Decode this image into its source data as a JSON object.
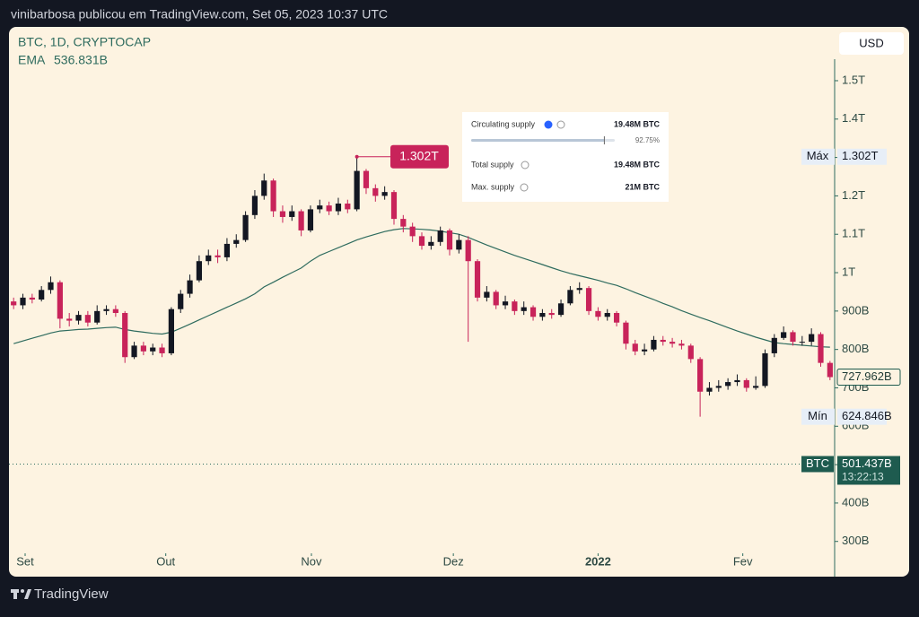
{
  "header": "vinibarbosa publicou em TradingView.com, Set 05, 2023 10:37 UTC",
  "footer": "TradingView",
  "chart_data": {
    "type": "candlestick",
    "title": "BTC, 1D, CRYPTOCAP",
    "currency": "USD",
    "up_color": "#131722",
    "down_color": "#c8235a",
    "open": [
      925,
      915,
      935,
      930,
      955,
      975,
      880,
      875,
      890,
      870,
      900,
      905,
      895,
      780,
      810,
      795,
      805,
      790,
      905,
      945,
      980,
      1030,
      1045,
      1040,
      1075,
      1085,
      1150,
      1200,
      1240,
      1160,
      1145,
      1160,
      1110,
      1165,
      1175,
      1160,
      1180,
      1165,
      1265,
      1220,
      1200,
      1210,
      1140,
      1120,
      1095,
      1070,
      1080,
      1110,
      1060,
      1085,
      1030,
      935,
      950,
      915,
      925,
      900,
      910,
      885,
      895,
      890,
      920,
      955,
      960,
      900,
      885,
      895,
      870,
      815,
      795,
      800,
      825,
      820,
      815,
      810,
      775,
      690,
      700,
      705,
      715,
      720,
      700,
      705,
      790,
      830,
      845,
      820,
      820,
      840,
      765
    ],
    "high": [
      935,
      945,
      945,
      965,
      990,
      980,
      895,
      900,
      900,
      915,
      915,
      915,
      900,
      820,
      820,
      815,
      815,
      910,
      955,
      995,
      1045,
      1060,
      1060,
      1090,
      1100,
      1160,
      1215,
      1258,
      1245,
      1175,
      1175,
      1165,
      1175,
      1190,
      1185,
      1195,
      1190,
      1302,
      1270,
      1230,
      1225,
      1215,
      1150,
      1130,
      1105,
      1095,
      1120,
      1115,
      1100,
      1095,
      1035,
      965,
      955,
      940,
      930,
      925,
      915,
      905,
      905,
      930,
      965,
      975,
      965,
      910,
      905,
      900,
      875,
      825,
      815,
      835,
      835,
      830,
      825,
      815,
      780,
      715,
      720,
      725,
      735,
      725,
      730,
      800,
      840,
      860,
      850,
      835,
      855,
      845,
      770
    ],
    "low": [
      905,
      905,
      920,
      925,
      945,
      855,
      860,
      865,
      860,
      865,
      890,
      885,
      765,
      775,
      785,
      785,
      780,
      785,
      895,
      935,
      975,
      1020,
      1025,
      1030,
      1065,
      1080,
      1140,
      1190,
      1145,
      1130,
      1135,
      1095,
      1105,
      1155,
      1150,
      1150,
      1155,
      1160,
      1205,
      1185,
      1190,
      1125,
      1105,
      1080,
      1060,
      1060,
      1070,
      1045,
      1050,
      820,
      925,
      925,
      905,
      905,
      890,
      890,
      875,
      875,
      880,
      885,
      915,
      945,
      890,
      875,
      875,
      860,
      800,
      785,
      785,
      795,
      810,
      805,
      800,
      765,
      624.846,
      680,
      690,
      695,
      705,
      690,
      695,
      700,
      780,
      825,
      810,
      810,
      810,
      755,
      720
    ],
    "close": [
      915,
      935,
      930,
      955,
      975,
      880,
      875,
      890,
      870,
      900,
      905,
      895,
      780,
      810,
      795,
      805,
      790,
      905,
      945,
      980,
      1030,
      1045,
      1040,
      1075,
      1085,
      1150,
      1200,
      1240,
      1160,
      1145,
      1160,
      1110,
      1165,
      1175,
      1160,
      1180,
      1165,
      1265,
      1220,
      1200,
      1210,
      1140,
      1120,
      1095,
      1070,
      1080,
      1110,
      1060,
      1085,
      1030,
      935,
      950,
      915,
      925,
      900,
      910,
      885,
      895,
      890,
      920,
      955,
      960,
      900,
      885,
      895,
      870,
      815,
      795,
      800,
      825,
      820,
      815,
      810,
      775,
      690,
      700,
      705,
      715,
      720,
      700,
      705,
      790,
      830,
      845,
      820,
      820,
      840,
      765,
      727.962
    ],
    "ema": {
      "name": "EMA",
      "legend_value": "536.831B",
      "color": "#2e6b5e",
      "values": [
        815,
        822,
        829,
        836,
        843,
        848,
        850,
        852,
        853,
        855,
        857,
        858,
        852,
        848,
        845,
        842,
        840,
        845,
        855,
        866,
        877,
        888,
        899,
        910,
        921,
        932,
        945,
        963,
        975,
        988,
        1000,
        1012,
        1030,
        1045,
        1055,
        1065,
        1075,
        1085,
        1093,
        1100,
        1107,
        1112,
        1115,
        1114,
        1113,
        1111,
        1108,
        1104,
        1100,
        1092,
        1082,
        1072,
        1063,
        1054,
        1045,
        1037,
        1029,
        1021,
        1013,
        1005,
        998,
        992,
        986,
        980,
        973,
        967,
        958,
        948,
        939,
        930,
        920,
        911,
        901,
        892,
        883,
        875,
        866,
        857,
        848,
        840,
        832,
        825,
        818,
        815,
        813,
        811,
        809,
        807,
        806
      ]
    },
    "xlim": [
      -0.5,
      88.5
    ],
    "xticks": [
      {
        "value": 1.24,
        "label": "Set"
      },
      {
        "value": 16.4,
        "label": "Out"
      },
      {
        "value": 32.1,
        "label": "Nov"
      },
      {
        "value": 47.4,
        "label": "Dez"
      },
      {
        "value": 63.0,
        "label": "2022"
      },
      {
        "value": 78.6,
        "label": "Fev"
      }
    ],
    "ylim": [
      269,
      1556
    ],
    "yticks": [
      {
        "value": 1500,
        "label": "1.5T"
      },
      {
        "value": 1400,
        "label": "1.4T"
      },
      {
        "value": 1300,
        "label": "1.3T"
      },
      {
        "value": 1200,
        "label": "1.2T"
      },
      {
        "value": 1100,
        "label": "1.1T"
      },
      {
        "value": 1000,
        "label": "1T"
      },
      {
        "value": 900,
        "label": "900B"
      },
      {
        "value": 800,
        "label": "800B"
      },
      {
        "value": 700,
        "label": "700B"
      },
      {
        "value": 600,
        "label": "600B"
      },
      {
        "value": 500,
        "label": "500B"
      },
      {
        "value": 400,
        "label": "400B"
      },
      {
        "value": 300,
        "label": "300B"
      }
    ],
    "max_label": {
      "prefix": "Máx",
      "value": 1302,
      "label": "1.302T"
    },
    "min_label": {
      "prefix": "Mín",
      "value": 624.846,
      "label": "624.846B"
    },
    "last_label": {
      "value": 727.962,
      "label": "727.962B"
    },
    "btc_line": {
      "name": "BTC",
      "value": 501.437,
      "label": "501.437B",
      "countdown": "13:22:13"
    }
  },
  "supply_widget": {
    "circulating": {
      "label": "Circulating supply",
      "value": "19.48M BTC",
      "percent": 92.75,
      "percent_label": "92.75%"
    },
    "total": {
      "label": "Total supply",
      "value": "19.48M BTC"
    },
    "max": {
      "label": "Max. supply",
      "value": "21M BTC"
    }
  }
}
